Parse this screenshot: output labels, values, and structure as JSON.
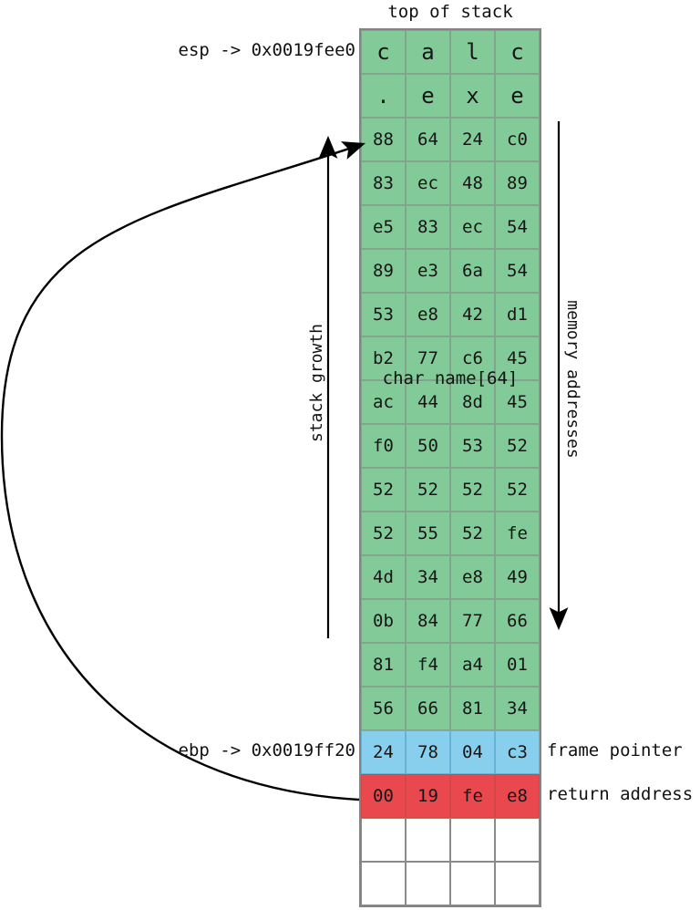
{
  "diagram_title": "top of stack",
  "pointer_labels": {
    "esp": "esp -> 0x0019fee0",
    "ebp": "ebp -> 0x0019ff20"
  },
  "axis_labels": {
    "stack_growth": "stack growth",
    "memory_addresses": "memory addresses"
  },
  "annotations": {
    "buffer": "char name[64]",
    "frame_pointer": "frame pointer",
    "return_address": "return address"
  },
  "cell_styles": {
    "green": {
      "fill": "#82ca98",
      "border": "#7fa68c"
    },
    "blue": {
      "fill": "#87cfec",
      "border": "#68b2d6"
    },
    "red": {
      "fill": "#e9484f",
      "border": "#cf4a42"
    },
    "white": {
      "fill": "#ffffff",
      "border": "#8a8a8a"
    }
  },
  "stack_rows": [
    {
      "type": "green",
      "chars": true,
      "cells": [
        "c",
        "a",
        "l",
        "c"
      ]
    },
    {
      "type": "green",
      "chars": true,
      "cells": [
        ".",
        "e",
        "x",
        "e"
      ]
    },
    {
      "type": "green",
      "chars": false,
      "cells": [
        "88",
        "64",
        "24",
        "c0"
      ]
    },
    {
      "type": "green",
      "chars": false,
      "cells": [
        "83",
        "ec",
        "48",
        "89"
      ]
    },
    {
      "type": "green",
      "chars": false,
      "cells": [
        "e5",
        "83",
        "ec",
        "54"
      ]
    },
    {
      "type": "green",
      "chars": false,
      "cells": [
        "89",
        "e3",
        "6a",
        "54"
      ]
    },
    {
      "type": "green",
      "chars": false,
      "cells": [
        "53",
        "e8",
        "42",
        "d1"
      ]
    },
    {
      "type": "green",
      "chars": false,
      "cells": [
        "b2",
        "77",
        "c6",
        "45"
      ]
    },
    {
      "type": "green",
      "chars": false,
      "cells": [
        "ac",
        "44",
        "8d",
        "45"
      ]
    },
    {
      "type": "green",
      "chars": false,
      "cells": [
        "f0",
        "50",
        "53",
        "52"
      ]
    },
    {
      "type": "green",
      "chars": false,
      "cells": [
        "52",
        "52",
        "52",
        "52"
      ]
    },
    {
      "type": "green",
      "chars": false,
      "cells": [
        "52",
        "55",
        "52",
        "fe"
      ]
    },
    {
      "type": "green",
      "chars": false,
      "cells": [
        "4d",
        "34",
        "e8",
        "49"
      ]
    },
    {
      "type": "green",
      "chars": false,
      "cells": [
        "0b",
        "84",
        "77",
        "66"
      ]
    },
    {
      "type": "green",
      "chars": false,
      "cells": [
        "81",
        "f4",
        "a4",
        "01"
      ]
    },
    {
      "type": "green",
      "chars": false,
      "cells": [
        "56",
        "66",
        "81",
        "34"
      ]
    },
    {
      "type": "blue",
      "chars": false,
      "cells": [
        "24",
        "78",
        "04",
        "c3"
      ]
    },
    {
      "type": "red",
      "chars": false,
      "cells": [
        "00",
        "19",
        "fe",
        "e8"
      ]
    },
    {
      "type": "white",
      "chars": false,
      "cells": [
        "",
        "",
        "",
        ""
      ]
    },
    {
      "type": "white",
      "chars": false,
      "cells": [
        "",
        "",
        "",
        ""
      ]
    }
  ]
}
